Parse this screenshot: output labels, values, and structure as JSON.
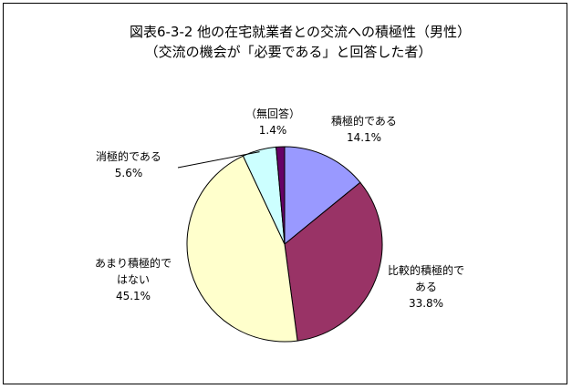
{
  "chart_data": {
    "type": "pie",
    "title": "図表6-3-2 他の在宅就業者との交流への積極性（男性）",
    "subtitle": "（交流の機会が「必要である」と回答した者）",
    "slices": [
      {
        "name": "積極的である",
        "value_label": "14.1%",
        "value": 14.1,
        "color": "#9999ff"
      },
      {
        "name": "比較的積極的である",
        "value_label": "33.8%",
        "value": 33.8,
        "color": "#993366"
      },
      {
        "name": "あまり積極的ではない",
        "value_label": "45.1%",
        "value": 45.1,
        "color": "#ffffcc"
      },
      {
        "name": "消極的である",
        "value_label": "5.6%",
        "value": 5.6,
        "color": "#ccffff"
      },
      {
        "name": "（無回答）",
        "value_label": "1.4%",
        "value": 1.4,
        "color": "#660066"
      }
    ],
    "label_lines": [
      [
        "積極的である",
        "14.1%"
      ],
      [
        "比較的積極的で",
        "ある",
        "33.8%"
      ],
      [
        "あまり積極的で",
        "はない",
        "45.1%"
      ],
      [
        "消極的である",
        "5.6%"
      ],
      [
        "（無回答）",
        "1.4%"
      ]
    ],
    "start_angle_deg": 0,
    "direction": "clockwise",
    "legend": "none"
  }
}
